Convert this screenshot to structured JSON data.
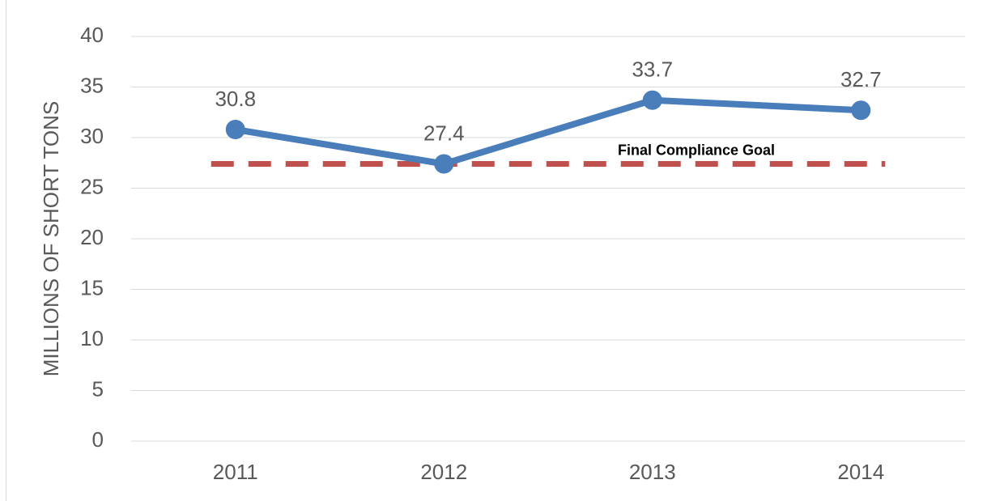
{
  "chart_data": {
    "type": "line",
    "y_label": "MILLIONS OF SHORT TONS",
    "categories": [
      "2011",
      "2012",
      "2013",
      "2014"
    ],
    "series": [
      {
        "color": "#4a7ebb",
        "values": [
          30.8,
          27.4,
          33.7,
          32.7
        ]
      }
    ],
    "goal": {
      "label": "Final Compliance Goal",
      "value": 27.4,
      "color": "#c0504d"
    },
    "ylim": [
      0,
      40
    ],
    "yticks": [
      0,
      5,
      10,
      15,
      20,
      25,
      30,
      35,
      40
    ],
    "grid": true
  }
}
